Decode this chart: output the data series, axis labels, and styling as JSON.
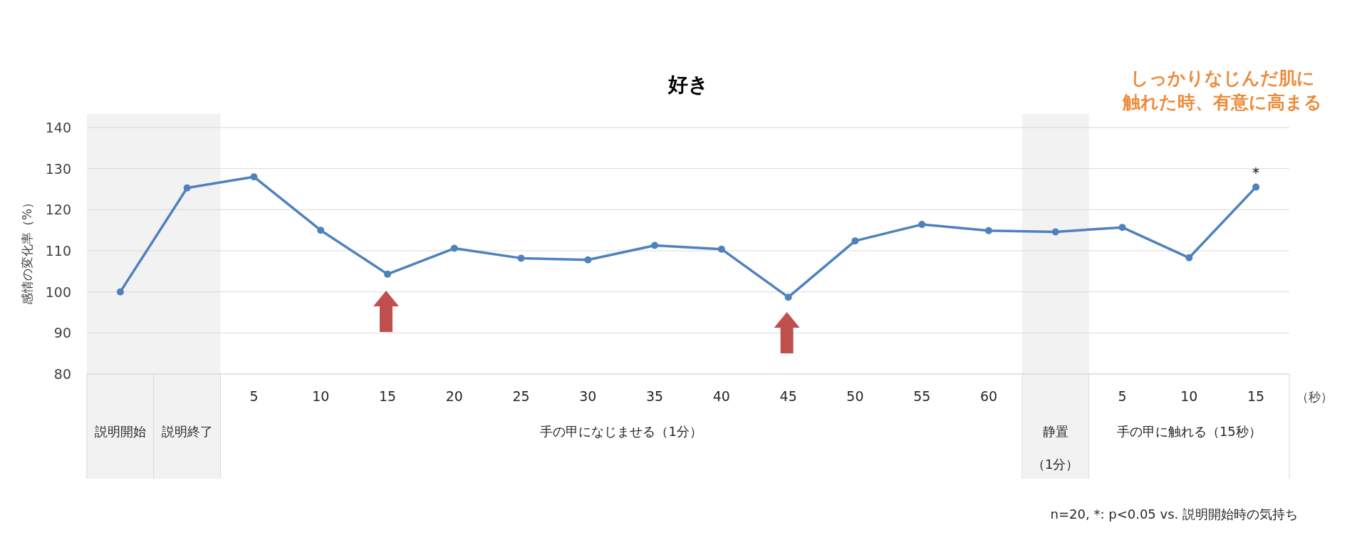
{
  "chart_data": {
    "type": "line",
    "title": "好き",
    "ylabel": "感情の変化率（%）",
    "categories": [
      null,
      null,
      "5",
      "10",
      "15",
      "20",
      "25",
      "30",
      "35",
      "40",
      "45",
      "50",
      "55",
      "60",
      null,
      "5",
      "10",
      "15"
    ],
    "series": [
      {
        "color": "#4f81bd",
        "values": [
          100,
          125.3,
          128,
          115,
          104.3,
          110.6,
          108.2,
          107.8,
          111.3,
          110.4,
          98.7,
          112.4,
          116.4,
          114.9,
          114.6,
          115.7,
          108.3,
          125.5
        ]
      }
    ],
    "ylim": [
      80,
      140
    ],
    "yticks": [
      80,
      90,
      100,
      110,
      120,
      130,
      140
    ],
    "grid": "y",
    "marker": "circle",
    "line_style": "solid",
    "annotations": [
      "*",
      "（秒）",
      "手の甲になじませる（1分）",
      "手の甲に触れる（15秒）",
      "しっかりなじんだ肌に触れた時、有意に高まる",
      "n=20, *: p<0.05 vs. 説明開始時の気持ち",
      "説明開始",
      "説明終了",
      "静置（1分）"
    ]
  }
}
